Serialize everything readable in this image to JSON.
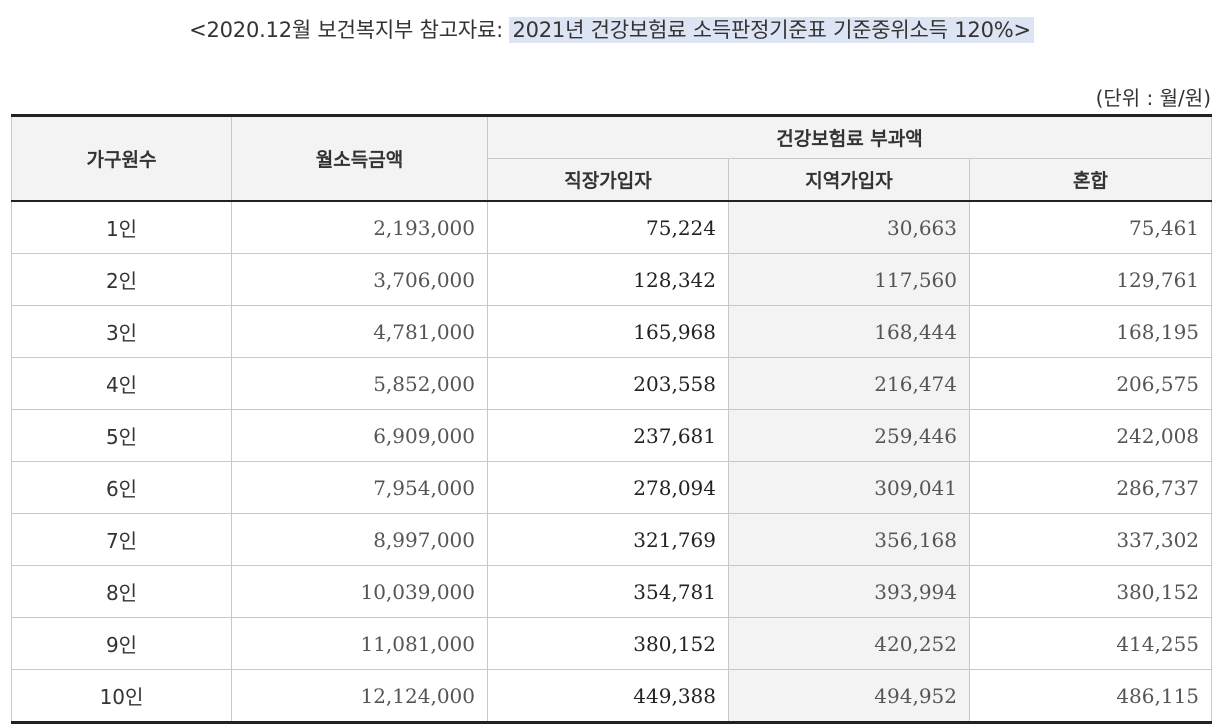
{
  "title": {
    "prefix": "<2020.12월 보건복지부 참고자료: ",
    "highlight": "2021년 건강보험료 소득판정기준표 기준중위소득 120%>"
  },
  "unit": "(단위 : 월/원)",
  "headers": {
    "household": "가구원수",
    "income": "월소득금액",
    "premium_group": "건강보험료 부과액",
    "employee": "직장가입자",
    "regional": "지역가입자",
    "mixed": "혼합"
  },
  "rows": [
    {
      "size": "1인",
      "income": "2,193,000",
      "employee": "75,224",
      "regional": "30,663",
      "mixed": "75,461"
    },
    {
      "size": "2인",
      "income": "3,706,000",
      "employee": "128,342",
      "regional": "117,560",
      "mixed": "129,761"
    },
    {
      "size": "3인",
      "income": "4,781,000",
      "employee": "165,968",
      "regional": "168,444",
      "mixed": "168,195"
    },
    {
      "size": "4인",
      "income": "5,852,000",
      "employee": "203,558",
      "regional": "216,474",
      "mixed": "206,575"
    },
    {
      "size": "5인",
      "income": "6,909,000",
      "employee": "237,681",
      "regional": "259,446",
      "mixed": "242,008"
    },
    {
      "size": "6인",
      "income": "7,954,000",
      "employee": "278,094",
      "regional": "309,041",
      "mixed": "286,737"
    },
    {
      "size": "7인",
      "income": "8,997,000",
      "employee": "321,769",
      "regional": "356,168",
      "mixed": "337,302"
    },
    {
      "size": "8인",
      "income": "10,039,000",
      "employee": "354,781",
      "regional": "393,994",
      "mixed": "380,152"
    },
    {
      "size": "9인",
      "income": "11,081,000",
      "employee": "380,152",
      "regional": "420,252",
      "mixed": "414,255"
    },
    {
      "size": "10인",
      "income": "12,124,000",
      "employee": "449,388",
      "regional": "494,952",
      "mixed": "486,115"
    }
  ]
}
